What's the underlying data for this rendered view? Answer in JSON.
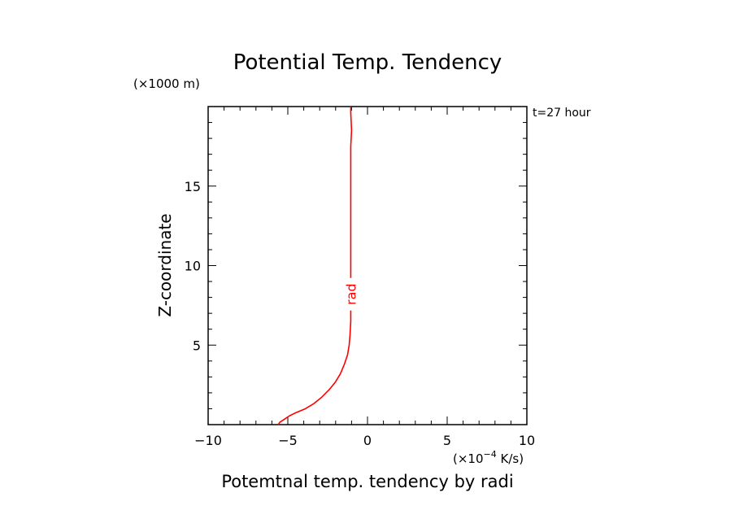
{
  "chart_data": {
    "type": "line",
    "title": "Potential Temp. Tendency",
    "xlabel": "Potemtnal temp. tendency by radi",
    "ylabel": "Z-coordinate",
    "x_unit": {
      "prefix": "(×10",
      "exponent": "−4",
      "suffix": " K/s)"
    },
    "y_unit": "(×1000 m)",
    "time_label": "t=27 hour",
    "xlim": [
      -10,
      10
    ],
    "ylim": [
      0,
      20
    ],
    "x_ticks": [
      -10,
      -5,
      0,
      5,
      10
    ],
    "x_tick_labels": [
      "−10",
      "−5",
      "0",
      "5",
      "10"
    ],
    "y_ticks": [
      5,
      10,
      15
    ],
    "y_tick_labels": [
      "5",
      "10",
      "15"
    ],
    "x_minor_step": 1,
    "y_minor_step": 1,
    "grid": false,
    "series": [
      {
        "name": "rad",
        "color": "#ff0000",
        "label_at": {
          "x": -1.05,
          "y": 8.2
        },
        "points": [
          {
            "x": -5.6,
            "y": 0.0
          },
          {
            "x": -5.5,
            "y": 0.15
          },
          {
            "x": -5.2,
            "y": 0.35
          },
          {
            "x": -4.9,
            "y": 0.55
          },
          {
            "x": -4.5,
            "y": 0.75
          },
          {
            "x": -3.9,
            "y": 1.0
          },
          {
            "x": -3.4,
            "y": 1.3
          },
          {
            "x": -2.9,
            "y": 1.7
          },
          {
            "x": -2.4,
            "y": 2.2
          },
          {
            "x": -2.0,
            "y": 2.7
          },
          {
            "x": -1.7,
            "y": 3.2
          },
          {
            "x": -1.45,
            "y": 3.8
          },
          {
            "x": -1.25,
            "y": 4.4
          },
          {
            "x": -1.15,
            "y": 5.0
          },
          {
            "x": -1.1,
            "y": 5.6
          },
          {
            "x": -1.05,
            "y": 6.5
          },
          {
            "x": -1.05,
            "y": 8.0
          },
          {
            "x": -1.05,
            "y": 10.0
          },
          {
            "x": -1.05,
            "y": 12.0
          },
          {
            "x": -1.05,
            "y": 14.0
          },
          {
            "x": -1.05,
            "y": 16.0
          },
          {
            "x": -1.05,
            "y": 17.5
          },
          {
            "x": -1.0,
            "y": 18.5
          },
          {
            "x": -1.05,
            "y": 19.6
          },
          {
            "x": -1.05,
            "y": 20.0
          }
        ]
      }
    ]
  }
}
